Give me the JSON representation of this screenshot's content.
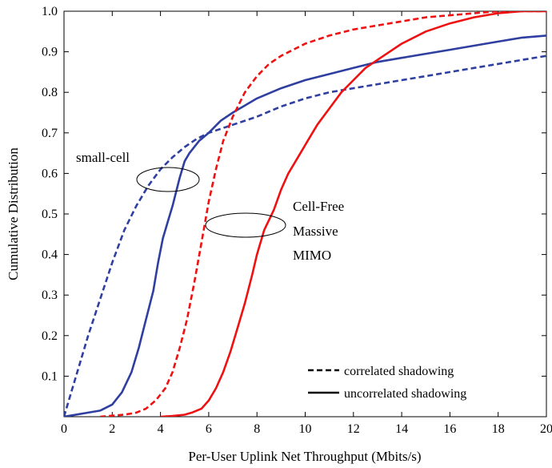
{
  "chart_data": {
    "type": "line",
    "title": "",
    "xlabel": "Per-User Uplink Net Throughput (Mbits/s)",
    "ylabel": "Cumulative Distribution",
    "xlim": [
      0,
      20
    ],
    "ylim": [
      0,
      1.0
    ],
    "x_ticks": [
      "0",
      "2",
      "4",
      "6",
      "8",
      "10",
      "12",
      "14",
      "16",
      "18",
      "20"
    ],
    "y_ticks": [
      "0.1",
      "0.2",
      "0.3",
      "0.4",
      "0.5",
      "0.6",
      "0.7",
      "0.8",
      "0.9",
      "1.0"
    ],
    "grid": false,
    "legend_position": "bottom-right",
    "legend": [
      {
        "label": "correlated shadowing",
        "style": "dashed"
      },
      {
        "label": "uncorrelated shadowing",
        "style": "solid"
      }
    ],
    "annotations": [
      {
        "text": "small-cell"
      },
      {
        "lines": [
          "Cell-Free",
          "Massive",
          "MIMO"
        ]
      }
    ],
    "series": [
      {
        "group": "small-cell",
        "style": "solid",
        "color": "#2f3fa0",
        "x": [
          0,
          1.0,
          1.5,
          2.0,
          2.4,
          2.8,
          3.1,
          3.4,
          3.7,
          3.9,
          4.1,
          4.3,
          4.5,
          4.8,
          5.0,
          5.2,
          5.6,
          6.0,
          6.5,
          7.0,
          8.0,
          9.0,
          10.0,
          11.0,
          12.0,
          13.0,
          14.0,
          15.0,
          16.0,
          17.0,
          18.0,
          19.0,
          20.0
        ],
        "y": [
          0,
          0.01,
          0.015,
          0.03,
          0.06,
          0.11,
          0.17,
          0.24,
          0.31,
          0.38,
          0.44,
          0.48,
          0.52,
          0.59,
          0.63,
          0.65,
          0.68,
          0.7,
          0.73,
          0.75,
          0.785,
          0.81,
          0.83,
          0.845,
          0.86,
          0.875,
          0.885,
          0.895,
          0.905,
          0.915,
          0.925,
          0.935,
          0.94
        ]
      },
      {
        "group": "small-cell",
        "style": "dashed",
        "color": "#2f3fa0",
        "x": [
          0,
          0.3,
          0.6,
          1.0,
          1.5,
          2.0,
          2.5,
          3.0,
          3.5,
          4.0,
          4.5,
          5.0,
          5.5,
          6.0,
          7.0,
          8.0,
          9.0,
          10.0,
          11.0,
          12.0,
          13.0,
          14.0,
          15.0,
          16.0,
          17.0,
          18.0,
          19.0,
          20.0
        ],
        "y": [
          0,
          0.06,
          0.12,
          0.2,
          0.29,
          0.38,
          0.46,
          0.52,
          0.57,
          0.61,
          0.64,
          0.665,
          0.685,
          0.7,
          0.72,
          0.74,
          0.765,
          0.785,
          0.8,
          0.81,
          0.82,
          0.83,
          0.84,
          0.85,
          0.86,
          0.87,
          0.88,
          0.89
        ]
      },
      {
        "group": "cell-free",
        "style": "solid",
        "color": "#ee1111",
        "x": [
          4.0,
          4.5,
          5.0,
          5.3,
          5.7,
          6.0,
          6.3,
          6.6,
          6.9,
          7.2,
          7.5,
          7.8,
          8.0,
          8.3,
          8.7,
          9.0,
          9.3,
          9.7,
          10.0,
          10.5,
          11.0,
          11.5,
          12.0,
          12.5,
          13.0,
          13.5,
          14.0,
          15.0,
          16.0,
          17.0,
          18.0,
          19.0,
          20.0
        ],
        "y": [
          0,
          0.002,
          0.005,
          0.01,
          0.02,
          0.04,
          0.07,
          0.11,
          0.16,
          0.22,
          0.28,
          0.35,
          0.4,
          0.46,
          0.51,
          0.56,
          0.6,
          0.64,
          0.67,
          0.72,
          0.76,
          0.8,
          0.83,
          0.86,
          0.88,
          0.9,
          0.92,
          0.95,
          0.97,
          0.985,
          0.995,
          1.0,
          1.0
        ]
      },
      {
        "group": "cell-free",
        "style": "dashed",
        "color": "#ee1111",
        "x": [
          1.5,
          2.5,
          3.0,
          3.4,
          3.8,
          4.2,
          4.5,
          4.8,
          5.1,
          5.4,
          5.7,
          6.0,
          6.3,
          6.6,
          7.0,
          7.5,
          8.0,
          8.5,
          9.0,
          10.0,
          11.0,
          12.0,
          13.0,
          14.0,
          15.0,
          16.0,
          17.0,
          18.0,
          19.0,
          20.0
        ],
        "y": [
          0,
          0.005,
          0.01,
          0.02,
          0.04,
          0.07,
          0.11,
          0.17,
          0.24,
          0.33,
          0.43,
          0.53,
          0.61,
          0.68,
          0.74,
          0.8,
          0.84,
          0.87,
          0.89,
          0.92,
          0.94,
          0.955,
          0.965,
          0.975,
          0.985,
          0.99,
          0.995,
          1.0,
          1.0,
          1.0
        ]
      }
    ]
  }
}
